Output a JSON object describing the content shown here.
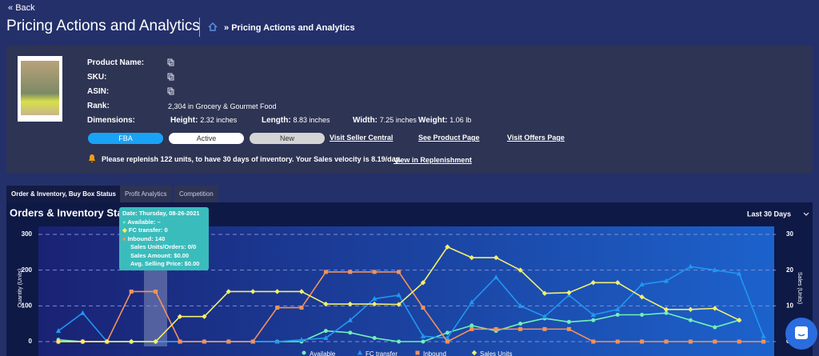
{
  "nav": {
    "back": "Back",
    "title": "Pricing Actions and Analytics",
    "breadcrumb": "Pricing Actions and Analytics"
  },
  "product": {
    "labels": [
      "Product Name:",
      "SKU:",
      "ASIN:",
      "Rank:",
      "Dimensions:"
    ],
    "rank": "2,304 in Grocery & Gourmet Food",
    "dimensions": [
      {
        "label": "Height:",
        "value": "2.32 inches"
      },
      {
        "label": "Length:",
        "value": "8.83 inches"
      },
      {
        "label": "Width:",
        "value": "7.25 inches"
      },
      {
        "label": "Weight:",
        "value": "1.06 lb"
      }
    ],
    "badges": [
      "FBA",
      "Active",
      "New"
    ],
    "links": [
      "Visit Seller Central",
      "See Product Page",
      "Visit Offers Page"
    ],
    "notice": "Please replenish 122 units, to have 30 days of inventory. Your Sales velocity is 8.19/day.",
    "notice_link": "View in Replenishment"
  },
  "tabs": [
    "Order & Inventory, Buy Box Status",
    "Profit Analytics",
    "Competition"
  ],
  "chart_data": {
    "type": "line",
    "title": "Orders & Inventory Status",
    "range": "Last 30 Days",
    "y_label": "Quantity (Units)",
    "y2_label": "Sales (Units)",
    "categories": [
      null,
      null,
      null,
      null,
      null,
      null,
      null,
      null,
      null,
      null,
      null,
      null,
      null,
      null,
      null,
      null,
      null,
      null,
      null,
      null,
      null,
      null,
      null,
      null,
      null,
      null,
      null,
      null,
      null,
      null
    ],
    "ylim": [
      0,
      300
    ],
    "yticks": [
      0,
      100,
      200,
      300
    ],
    "y2lim": [
      0,
      30
    ],
    "y2ticks": [
      0,
      10,
      20,
      30
    ],
    "grid": true,
    "series": [
      {
        "name": "Available",
        "color": "#6ff0b8",
        "marker": "circle",
        "values": [
          5,
          0,
          0,
          0,
          0,
          0,
          0,
          0,
          0,
          0,
          0,
          30,
          25,
          10,
          0,
          0,
          25,
          45,
          30,
          50,
          65,
          55,
          60,
          75,
          75,
          80,
          60,
          40,
          60,
          null
        ]
      },
      {
        "name": "FC transfer",
        "color": "#2196f3",
        "marker": "triangle",
        "values": [
          30,
          80,
          0,
          0,
          0,
          0,
          0,
          0,
          0,
          0,
          5,
          10,
          60,
          120,
          130,
          15,
          10,
          110,
          180,
          100,
          70,
          130,
          75,
          90,
          160,
          170,
          210,
          200,
          190,
          15
        ]
      },
      {
        "name": "Inbound",
        "color": "#f4915b",
        "marker": "square",
        "values": [
          0,
          0,
          0,
          140,
          140,
          0,
          0,
          0,
          0,
          95,
          95,
          195,
          195,
          195,
          195,
          95,
          0,
          35,
          35,
          35,
          35,
          35,
          0,
          0,
          0,
          0,
          0,
          0,
          0,
          0
        ]
      },
      {
        "name": "Sales Units",
        "color": "#f3ef6e",
        "marker": "diamond",
        "axis": "y2",
        "values": [
          0,
          0,
          0,
          0,
          0,
          7,
          7,
          14,
          14,
          14,
          14,
          10.5,
          10.5,
          10.5,
          10.4,
          16.5,
          26.5,
          23.5,
          23.5,
          20,
          13.5,
          13.7,
          16.5,
          16.5,
          12.5,
          9,
          9,
          9.3,
          6,
          null
        ]
      }
    ],
    "tooltip": [
      "Date: Thursday, 08-26-2021",
      "Available: –",
      "FC transfer: 0",
      "Inbound: 140",
      "Sales Units/Orders: 0/0",
      "Sales Amount: $0.00",
      "Avg. Selling Price: $0.00"
    ]
  }
}
